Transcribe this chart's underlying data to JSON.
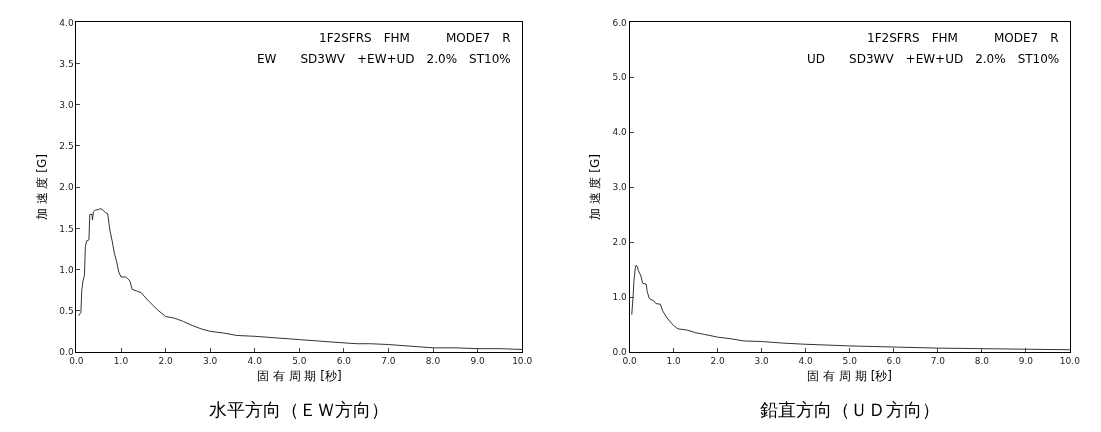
{
  "chart_data": [
    {
      "type": "line",
      "title": "水平方向（ＥＷ方向）",
      "xlabel": "固 有 周 期 [秒]",
      "ylabel": "加 速 度 [G]",
      "annotations": [
        "1F2SFRS　FHM　　　MODE7　R",
        "EW　　SD3WV　+EW+UD　2.0%　ST10%"
      ],
      "xlim": [
        0,
        10
      ],
      "ylim": [
        0,
        4
      ],
      "xticks": [
        {
          "value": 0,
          "label": "0.0"
        },
        {
          "value": 1,
          "label": "1.0"
        },
        {
          "value": 2,
          "label": "2.0"
        },
        {
          "value": 3,
          "label": "3.0"
        },
        {
          "value": 4,
          "label": "4.0"
        },
        {
          "value": 5,
          "label": "5.0"
        },
        {
          "value": 6,
          "label": "6.0"
        },
        {
          "value": 7,
          "label": "7.0"
        },
        {
          "value": 8,
          "label": "8.0"
        },
        {
          "value": 9,
          "label": "9.0"
        },
        {
          "value": 10,
          "label": "10.0"
        }
      ],
      "yticks": [
        {
          "value": 0,
          "label": "0.0"
        },
        {
          "value": 0.5,
          "label": "0.5"
        },
        {
          "value": 1,
          "label": "1.0"
        },
        {
          "value": 1.5,
          "label": "1.5"
        },
        {
          "value": 2,
          "label": "2.0"
        },
        {
          "value": 2.5,
          "label": "2.5"
        },
        {
          "value": 3,
          "label": "3.0"
        },
        {
          "value": 3.5,
          "label": "3.5"
        },
        {
          "value": 4,
          "label": "4.0"
        }
      ],
      "marker": "none",
      "line_style": "solid",
      "x": [
        0.05,
        0.1,
        0.12,
        0.15,
        0.18,
        0.2,
        0.23,
        0.28,
        0.3,
        0.35,
        0.36,
        0.38,
        0.42,
        0.5,
        0.55,
        0.6,
        0.65,
        0.7,
        0.75,
        0.8,
        0.85,
        0.9,
        0.95,
        1.0,
        1.1,
        1.15,
        1.2,
        1.25,
        1.35,
        1.45,
        1.6,
        1.8,
        2.0,
        2.2,
        2.4,
        2.6,
        2.8,
        3.0,
        3.3,
        3.6,
        4.0,
        4.5,
        5.0,
        5.5,
        6.0,
        6.3,
        6.6,
        7.0,
        7.5,
        8.0,
        8.5,
        9.0,
        9.5,
        10.0
      ],
      "series": [
        {
          "color": "#333333",
          "values": [
            0.44,
            0.48,
            0.75,
            0.87,
            0.93,
            1.28,
            1.35,
            1.36,
            1.67,
            1.67,
            1.6,
            1.7,
            1.72,
            1.73,
            1.74,
            1.72,
            1.69,
            1.68,
            1.48,
            1.35,
            1.2,
            1.1,
            0.97,
            0.91,
            0.91,
            0.89,
            0.86,
            0.76,
            0.74,
            0.72,
            0.63,
            0.52,
            0.43,
            0.41,
            0.37,
            0.32,
            0.28,
            0.25,
            0.23,
            0.2,
            0.19,
            0.17,
            0.15,
            0.13,
            0.11,
            0.1,
            0.1,
            0.09,
            0.07,
            0.05,
            0.05,
            0.04,
            0.04,
            0.03
          ]
        }
      ]
    },
    {
      "type": "line",
      "title": "鉛直方向（ＵＤ方向）",
      "xlabel": "固 有 周 期 [秒]",
      "ylabel": "加 速 度 [G]",
      "annotations": [
        "1F2SFRS　FHM　　　MODE7　R",
        "UD　　SD3WV　+EW+UD　2.0%　ST10%"
      ],
      "xlim": [
        0,
        10
      ],
      "ylim": [
        0,
        6
      ],
      "xticks": [
        {
          "value": 0,
          "label": "0.0"
        },
        {
          "value": 1,
          "label": "1.0"
        },
        {
          "value": 2,
          "label": "2.0"
        },
        {
          "value": 3,
          "label": "3.0"
        },
        {
          "value": 4,
          "label": "4.0"
        },
        {
          "value": 5,
          "label": "5.0"
        },
        {
          "value": 6,
          "label": "6.0"
        },
        {
          "value": 7,
          "label": "7.0"
        },
        {
          "value": 8,
          "label": "8.0"
        },
        {
          "value": 9,
          "label": "9.0"
        },
        {
          "value": 10,
          "label": "10.0"
        }
      ],
      "yticks": [
        {
          "value": 0,
          "label": "0.0"
        },
        {
          "value": 1,
          "label": "1.0"
        },
        {
          "value": 2,
          "label": "2.0"
        },
        {
          "value": 3,
          "label": "3.0"
        },
        {
          "value": 4,
          "label": "4.0"
        },
        {
          "value": 5,
          "label": "5.0"
        },
        {
          "value": 6,
          "label": "6.0"
        }
      ],
      "marker": "none",
      "line_style": "solid",
      "x": [
        0.05,
        0.08,
        0.1,
        0.13,
        0.15,
        0.18,
        0.2,
        0.25,
        0.3,
        0.38,
        0.4,
        0.45,
        0.55,
        0.6,
        0.7,
        0.75,
        0.85,
        1.0,
        1.1,
        1.3,
        1.5,
        1.7,
        2.0,
        2.3,
        2.6,
        3.0,
        3.5,
        4.0,
        5.0,
        6.0,
        7.0,
        8.0,
        9.0,
        10.0
      ],
      "series": [
        {
          "color": "#333333",
          "values": [
            0.68,
            1.0,
            1.3,
            1.52,
            1.58,
            1.55,
            1.48,
            1.4,
            1.25,
            1.23,
            1.1,
            0.97,
            0.93,
            0.88,
            0.87,
            0.75,
            0.62,
            0.48,
            0.42,
            0.4,
            0.35,
            0.32,
            0.27,
            0.24,
            0.2,
            0.19,
            0.16,
            0.14,
            0.11,
            0.09,
            0.07,
            0.06,
            0.05,
            0.04
          ]
        }
      ]
    }
  ]
}
